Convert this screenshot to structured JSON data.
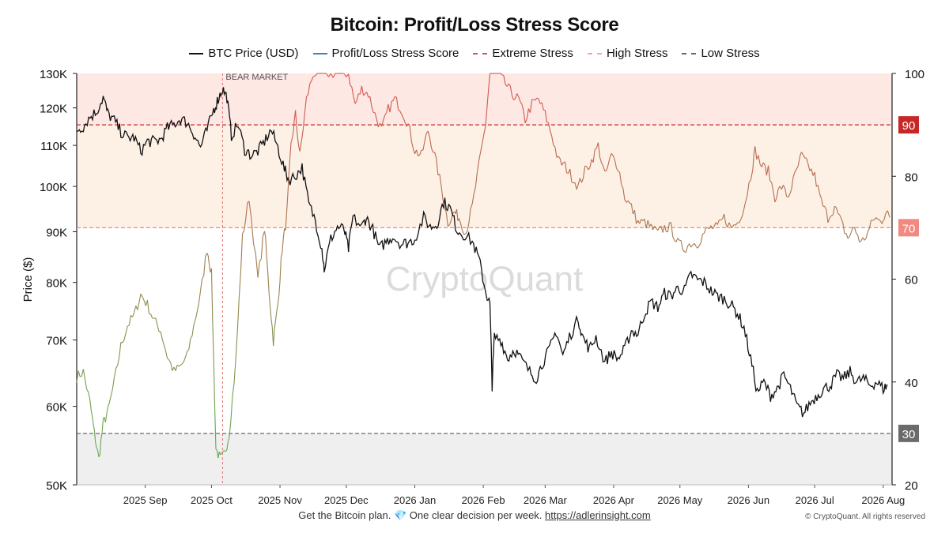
{
  "chart_data": {
    "type": "line",
    "title": "Bitcoin: Profit/Loss Stress Score",
    "ylabel": "Price ($)",
    "y_scale": "log",
    "ylim": [
      50000,
      130000
    ],
    "y2lim": [
      20,
      100
    ],
    "y_ticks": [
      "130K",
      "120K",
      "110K",
      "100K",
      "90K",
      "80K",
      "70K",
      "60K",
      "50K"
    ],
    "y2_ticks": [
      "100",
      "80",
      "60",
      "40",
      "20"
    ],
    "x_ticks": [
      "2025 Sep",
      "2025 Oct",
      "2025 Nov",
      "2025 Dec",
      "2026 Jan",
      "2026 Feb",
      "2026 Mar",
      "2026 Apr",
      "2026 May",
      "2026 Jun",
      "2026 Jul",
      "2026 Aug"
    ],
    "x_range": [
      "2025-08-01",
      "2026-08-05"
    ],
    "legend": [
      {
        "label": "BTC Price (USD)",
        "color": "#111111",
        "dash": false
      },
      {
        "label": "Profit/Loss Stress Score",
        "color": "#4a74d6",
        "dash": false
      },
      {
        "label": "Extreme Stress",
        "color": "#d9534f",
        "dash": true
      },
      {
        "label": "High Stress",
        "color": "#f0a8a0",
        "dash": true
      },
      {
        "label": "Low Stress",
        "color": "#666666",
        "dash": true
      }
    ],
    "thresholds": [
      {
        "label": "90",
        "value": 90,
        "color": "#c62828"
      },
      {
        "label": "70",
        "value": 70,
        "color": "#f08a80"
      },
      {
        "label": "30",
        "value": 30,
        "color": "#6b6b6b"
      }
    ],
    "annotation": {
      "label": "BEAR MARKET",
      "date": "2025-10-06"
    },
    "watermark": "CryptoQuant",
    "series": [
      {
        "name": "BTC Price (USD)",
        "points": [
          [
            "2025-08-01",
            114000
          ],
          [
            "2025-08-04",
            115000
          ],
          [
            "2025-08-07",
            117500
          ],
          [
            "2025-08-10",
            119000
          ],
          [
            "2025-08-13",
            123000
          ],
          [
            "2025-08-15",
            118500
          ],
          [
            "2025-08-18",
            116500
          ],
          [
            "2025-08-21",
            113500
          ],
          [
            "2025-08-24",
            112000
          ],
          [
            "2025-08-27",
            112000
          ],
          [
            "2025-08-30",
            108500
          ],
          [
            "2025-09-02",
            111000
          ],
          [
            "2025-09-05",
            111000
          ],
          [
            "2025-09-08",
            111500
          ],
          [
            "2025-09-11",
            114500
          ],
          [
            "2025-09-14",
            115500
          ],
          [
            "2025-09-17",
            117000
          ],
          [
            "2025-09-20",
            116000
          ],
          [
            "2025-09-23",
            113000
          ],
          [
            "2025-09-26",
            109500
          ],
          [
            "2025-09-29",
            114000
          ],
          [
            "2025-10-02",
            119500
          ],
          [
            "2025-10-04",
            122500
          ],
          [
            "2025-10-06",
            125500
          ],
          [
            "2025-10-08",
            123000
          ],
          [
            "2025-10-10",
            112500
          ],
          [
            "2025-10-13",
            115500
          ],
          [
            "2025-10-16",
            109000
          ],
          [
            "2025-10-19",
            107500
          ],
          [
            "2025-10-22",
            108500
          ],
          [
            "2025-10-25",
            111000
          ],
          [
            "2025-10-28",
            114000
          ],
          [
            "2025-10-31",
            109500
          ],
          [
            "2025-11-03",
            104000
          ],
          [
            "2025-11-05",
            101500
          ],
          [
            "2025-11-08",
            102500
          ],
          [
            "2025-11-11",
            104500
          ],
          [
            "2025-11-14",
            96000
          ],
          [
            "2025-11-17",
            92500
          ],
          [
            "2025-11-20",
            86500
          ],
          [
            "2025-11-21",
            82500
          ],
          [
            "2025-11-24",
            88500
          ],
          [
            "2025-11-27",
            91000
          ],
          [
            "2025-11-30",
            90500
          ],
          [
            "2025-12-02",
            86500
          ],
          [
            "2025-12-04",
            93000
          ],
          [
            "2025-12-08",
            91000
          ],
          [
            "2025-12-10",
            93000
          ],
          [
            "2025-12-13",
            90500
          ],
          [
            "2025-12-16",
            86500
          ],
          [
            "2025-12-19",
            88000
          ],
          [
            "2025-12-22",
            89000
          ],
          [
            "2025-12-26",
            87500
          ],
          [
            "2025-12-29",
            87800
          ],
          [
            "2026-01-01",
            88500
          ],
          [
            "2026-01-05",
            93000
          ],
          [
            "2026-01-08",
            91000
          ],
          [
            "2026-01-11",
            91500
          ],
          [
            "2026-01-14",
            96500
          ],
          [
            "2026-01-17",
            95000
          ],
          [
            "2026-01-20",
            90500
          ],
          [
            "2026-01-23",
            89500
          ],
          [
            "2026-01-27",
            88000
          ],
          [
            "2026-01-30",
            84500
          ],
          [
            "2026-02-02",
            78500
          ],
          [
            "2026-02-04",
            76000
          ],
          [
            "2026-02-05",
            63000
          ],
          [
            "2026-02-06",
            70500
          ],
          [
            "2026-02-09",
            70000
          ],
          [
            "2026-02-12",
            67000
          ],
          [
            "2026-02-15",
            68500
          ],
          [
            "2026-02-18",
            67000
          ],
          [
            "2026-02-22",
            65000
          ],
          [
            "2026-02-25",
            64000
          ],
          [
            "2026-02-28",
            66500
          ],
          [
            "2026-03-03",
            68500
          ],
          [
            "2026-03-06",
            71500
          ],
          [
            "2026-03-09",
            67500
          ],
          [
            "2026-03-12",
            70500
          ],
          [
            "2026-03-16",
            73500
          ],
          [
            "2026-03-18",
            70500
          ],
          [
            "2026-03-21",
            68500
          ],
          [
            "2026-03-24",
            70500
          ],
          [
            "2026-03-28",
            66500
          ],
          [
            "2026-03-31",
            68000
          ],
          [
            "2026-04-03",
            67000
          ],
          [
            "2026-04-06",
            68500
          ],
          [
            "2026-04-09",
            71500
          ],
          [
            "2026-04-12",
            71000
          ],
          [
            "2026-04-15",
            74500
          ],
          [
            "2026-04-18",
            76500
          ],
          [
            "2026-04-21",
            75500
          ],
          [
            "2026-04-24",
            78000
          ],
          [
            "2026-04-27",
            77500
          ],
          [
            "2026-04-30",
            79000
          ],
          [
            "2026-05-03",
            78500
          ],
          [
            "2026-05-06",
            81500
          ],
          [
            "2026-05-09",
            80500
          ],
          [
            "2026-05-12",
            80000
          ],
          [
            "2026-05-15",
            78500
          ],
          [
            "2026-05-18",
            77500
          ],
          [
            "2026-05-21",
            77000
          ],
          [
            "2026-05-24",
            76000
          ],
          [
            "2026-05-27",
            74500
          ],
          [
            "2026-05-30",
            72000
          ],
          [
            "2026-06-02",
            67000
          ],
          [
            "2026-06-05",
            62000
          ],
          [
            "2026-06-08",
            63500
          ],
          [
            "2026-06-11",
            61500
          ],
          [
            "2026-06-14",
            62500
          ],
          [
            "2026-06-17",
            64500
          ],
          [
            "2026-06-20",
            62500
          ],
          [
            "2026-06-23",
            60000
          ],
          [
            "2026-06-26",
            59000
          ],
          [
            "2026-06-29",
            60500
          ],
          [
            "2026-07-02",
            61500
          ],
          [
            "2026-07-05",
            62500
          ],
          [
            "2026-07-08",
            63000
          ],
          [
            "2026-07-11",
            64500
          ],
          [
            "2026-07-14",
            64000
          ],
          [
            "2026-07-17",
            65000
          ],
          [
            "2026-07-20",
            63500
          ],
          [
            "2026-07-23",
            64000
          ],
          [
            "2026-07-26",
            63000
          ],
          [
            "2026-07-29",
            63500
          ],
          [
            "2026-08-01",
            62500
          ],
          [
            "2026-08-03",
            63000
          ]
        ]
      },
      {
        "name": "Profit/Loss Stress Score",
        "points": [
          [
            "2025-08-01",
            41
          ],
          [
            "2025-08-04",
            42
          ],
          [
            "2025-08-07",
            36
          ],
          [
            "2025-08-09",
            30
          ],
          [
            "2025-08-11",
            25
          ],
          [
            "2025-08-13",
            32
          ],
          [
            "2025-08-15",
            34
          ],
          [
            "2025-08-18",
            40
          ],
          [
            "2025-08-21",
            47
          ],
          [
            "2025-08-24",
            51
          ],
          [
            "2025-08-27",
            53
          ],
          [
            "2025-08-30",
            57
          ],
          [
            "2025-09-02",
            55
          ],
          [
            "2025-09-05",
            52
          ],
          [
            "2025-09-08",
            50
          ],
          [
            "2025-09-11",
            45
          ],
          [
            "2025-09-14",
            42
          ],
          [
            "2025-09-17",
            43
          ],
          [
            "2025-09-20",
            45
          ],
          [
            "2025-09-23",
            51
          ],
          [
            "2025-09-26",
            57
          ],
          [
            "2025-09-29",
            66
          ],
          [
            "2025-10-01",
            61
          ],
          [
            "2025-10-03",
            27
          ],
          [
            "2025-10-05",
            25
          ],
          [
            "2025-10-07",
            26
          ],
          [
            "2025-10-09",
            30
          ],
          [
            "2025-10-12",
            44
          ],
          [
            "2025-10-15",
            68
          ],
          [
            "2025-10-18",
            76
          ],
          [
            "2025-10-22",
            60
          ],
          [
            "2025-10-25",
            70
          ],
          [
            "2025-10-27",
            58
          ],
          [
            "2025-10-29",
            48
          ],
          [
            "2025-10-31",
            55
          ],
          [
            "2025-11-02",
            66
          ],
          [
            "2025-11-04",
            72
          ],
          [
            "2025-11-06",
            86
          ],
          [
            "2025-11-08",
            92
          ],
          [
            "2025-11-10",
            84
          ],
          [
            "2025-11-13",
            95
          ],
          [
            "2025-11-16",
            100
          ],
          [
            "2025-11-20",
            100
          ],
          [
            "2025-11-24",
            100
          ],
          [
            "2025-11-28",
            100
          ],
          [
            "2025-12-02",
            100
          ],
          [
            "2025-12-05",
            94
          ],
          [
            "2025-12-08",
            97
          ],
          [
            "2025-12-11",
            96
          ],
          [
            "2025-12-14",
            92
          ],
          [
            "2025-12-17",
            89
          ],
          [
            "2025-12-20",
            93
          ],
          [
            "2025-12-23",
            95
          ],
          [
            "2025-12-26",
            93
          ],
          [
            "2025-12-29",
            90
          ],
          [
            "2026-01-01",
            85
          ],
          [
            "2026-01-04",
            84
          ],
          [
            "2026-01-07",
            89
          ],
          [
            "2026-01-10",
            84
          ],
          [
            "2026-01-13",
            78
          ],
          [
            "2026-01-16",
            71
          ],
          [
            "2026-01-19",
            73
          ],
          [
            "2026-01-21",
            72
          ],
          [
            "2026-01-24",
            69
          ],
          [
            "2026-01-27",
            74
          ],
          [
            "2026-01-30",
            82
          ],
          [
            "2026-02-02",
            90
          ],
          [
            "2026-02-04",
            100
          ],
          [
            "2026-02-08",
            100
          ],
          [
            "2026-02-11",
            98
          ],
          [
            "2026-02-14",
            96
          ],
          [
            "2026-02-17",
            95
          ],
          [
            "2026-02-20",
            91
          ],
          [
            "2026-02-23",
            94
          ],
          [
            "2026-02-26",
            95
          ],
          [
            "2026-03-01",
            92
          ],
          [
            "2026-03-04",
            88
          ],
          [
            "2026-03-07",
            83
          ],
          [
            "2026-03-10",
            82
          ],
          [
            "2026-03-13",
            80
          ],
          [
            "2026-03-16",
            78
          ],
          [
            "2026-03-19",
            81
          ],
          [
            "2026-03-22",
            83
          ],
          [
            "2026-03-25",
            86
          ],
          [
            "2026-03-28",
            80
          ],
          [
            "2026-03-31",
            84
          ],
          [
            "2026-04-03",
            82
          ],
          [
            "2026-04-06",
            76
          ],
          [
            "2026-04-09",
            74
          ],
          [
            "2026-04-12",
            71
          ],
          [
            "2026-04-15",
            71
          ],
          [
            "2026-04-18",
            70
          ],
          [
            "2026-04-21",
            69
          ],
          [
            "2026-04-24",
            70
          ],
          [
            "2026-04-27",
            70
          ],
          [
            "2026-04-30",
            67
          ],
          [
            "2026-05-03",
            66
          ],
          [
            "2026-05-06",
            67
          ],
          [
            "2026-05-09",
            67
          ],
          [
            "2026-05-12",
            69
          ],
          [
            "2026-05-15",
            70
          ],
          [
            "2026-05-18",
            70
          ],
          [
            "2026-05-21",
            72
          ],
          [
            "2026-05-24",
            70
          ],
          [
            "2026-05-27",
            71
          ],
          [
            "2026-05-30",
            74
          ],
          [
            "2026-06-02",
            80
          ],
          [
            "2026-06-04",
            85
          ],
          [
            "2026-06-07",
            82
          ],
          [
            "2026-06-10",
            81
          ],
          [
            "2026-06-13",
            76
          ],
          [
            "2026-06-16",
            78
          ],
          [
            "2026-06-19",
            76
          ],
          [
            "2026-06-22",
            80
          ],
          [
            "2026-06-25",
            84
          ],
          [
            "2026-06-28",
            82
          ],
          [
            "2026-07-01",
            80
          ],
          [
            "2026-07-04",
            75
          ],
          [
            "2026-07-07",
            72
          ],
          [
            "2026-07-10",
            74
          ],
          [
            "2026-07-13",
            71
          ],
          [
            "2026-07-16",
            68
          ],
          [
            "2026-07-19",
            70
          ],
          [
            "2026-07-22",
            67
          ],
          [
            "2026-07-25",
            69
          ],
          [
            "2026-07-28",
            72
          ],
          [
            "2026-07-31",
            71
          ],
          [
            "2026-08-02",
            73
          ],
          [
            "2026-08-04",
            72
          ]
        ]
      }
    ]
  },
  "footer": {
    "text": "Get the Bitcoin plan.",
    "gem": "💎",
    "text2": "One clear decision per week.",
    "link": "https://adlerinsight.com",
    "copyright": "© CryptoQuant. All rights reserved"
  },
  "colors": {
    "price": "#111111",
    "extreme_zone": "#fde8e4",
    "high_zone": "#fdf1e6",
    "low_zone": "#efefef",
    "score_low": "#6aa84f",
    "score_high": "#d9534f"
  }
}
